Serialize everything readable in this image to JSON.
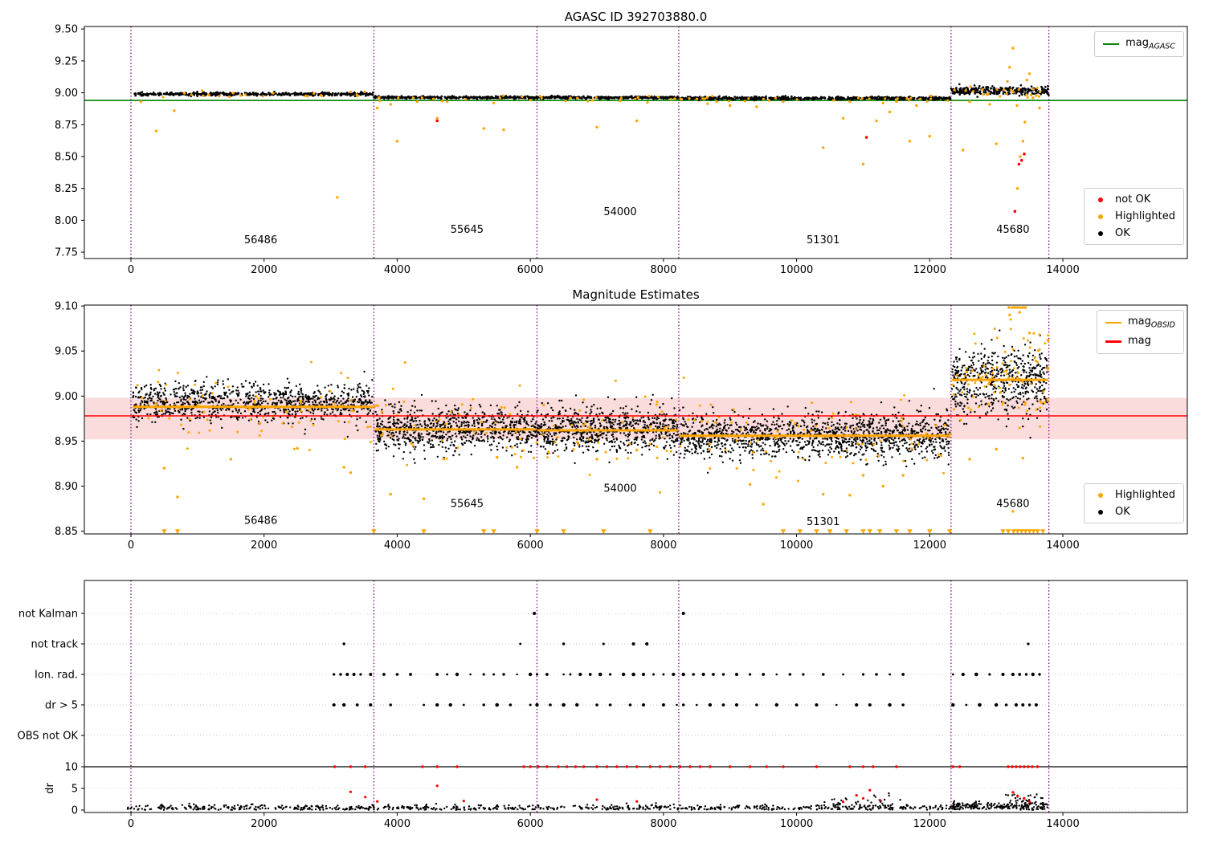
{
  "colors": {
    "ok": "#000000",
    "highlighted": "#FFA500",
    "not_ok": "#FF0000",
    "mag_agasc_line": "#008000",
    "mag_line": "#FF0000",
    "mag_obsid_line": "#FFA500",
    "mag_band": "#fadcdc",
    "obsid_divider": "#800080"
  },
  "chart_data": [
    {
      "type": "scatter",
      "title": "AGASC ID 392703880.0",
      "xlim": [
        -700,
        15870
      ],
      "ylim": [
        7.7,
        9.52
      ],
      "xticks": [
        0,
        2000,
        4000,
        6000,
        8000,
        10000,
        12000,
        14000
      ],
      "yticks": [
        7.75,
        8.0,
        8.25,
        8.5,
        8.75,
        9.0,
        9.25,
        9.5
      ],
      "vlines": [
        0,
        3650,
        6100,
        8230,
        12320,
        13790
      ],
      "hline": {
        "y": 8.94,
        "label": {
          "text": "mag",
          "sub": "AGASC"
        }
      },
      "obsid_labels": [
        {
          "text": "56486",
          "x": 1700,
          "y": 7.82
        },
        {
          "text": "55645",
          "x": 4800,
          "y": 7.9
        },
        {
          "text": "54000",
          "x": 7100,
          "y": 8.04
        },
        {
          "text": "51301",
          "x": 10150,
          "y": 7.82
        },
        {
          "text": "45680",
          "x": 13000,
          "y": 7.9
        }
      ],
      "ok_clusters": [
        {
          "x0": 30,
          "x1": 3650,
          "n": 500,
          "mean": 8.99,
          "sd": 0.006
        },
        {
          "x0": 3650,
          "x1": 8230,
          "n": 650,
          "mean": 8.963,
          "sd": 0.005
        },
        {
          "x0": 8230,
          "x1": 12320,
          "n": 600,
          "mean": 8.957,
          "sd": 0.006
        },
        {
          "x0": 12320,
          "x1": 13790,
          "n": 280,
          "mean": 9.015,
          "sd": 0.016
        }
      ],
      "highlight_clusters": [
        {
          "x0": 30,
          "x1": 3650,
          "n": 22,
          "mean": 8.982,
          "sd": 0.012
        },
        {
          "x0": 3650,
          "x1": 8230,
          "n": 30,
          "mean": 8.955,
          "sd": 0.012
        },
        {
          "x0": 8230,
          "x1": 12320,
          "n": 30,
          "mean": 8.95,
          "sd": 0.012
        },
        {
          "x0": 12320,
          "x1": 13790,
          "n": 25,
          "mean": 9.0,
          "sd": 0.03
        }
      ],
      "highlight_points": [
        [
          150,
          8.93
        ],
        [
          380,
          8.7
        ],
        [
          650,
          8.86
        ],
        [
          3100,
          8.18
        ],
        [
          3700,
          8.88
        ],
        [
          3900,
          8.91
        ],
        [
          4000,
          8.62
        ],
        [
          4300,
          8.93
        ],
        [
          4600,
          8.8
        ],
        [
          4750,
          8.93
        ],
        [
          5300,
          8.72
        ],
        [
          5450,
          8.92
        ],
        [
          5600,
          8.71
        ],
        [
          6600,
          8.96
        ],
        [
          7000,
          8.73
        ],
        [
          7600,
          8.78
        ],
        [
          8800,
          8.93
        ],
        [
          9000,
          8.9
        ],
        [
          9400,
          8.89
        ],
        [
          9800,
          8.93
        ],
        [
          10400,
          8.57
        ],
        [
          10700,
          8.8
        ],
        [
          10800,
          8.93
        ],
        [
          11000,
          8.44
        ],
        [
          11200,
          8.78
        ],
        [
          11300,
          8.92
        ],
        [
          11400,
          8.85
        ],
        [
          11500,
          8.93
        ],
        [
          11700,
          8.62
        ],
        [
          11800,
          8.9
        ],
        [
          12000,
          8.66
        ],
        [
          12500,
          8.55
        ],
        [
          12600,
          8.93
        ],
        [
          12900,
          8.91
        ],
        [
          13000,
          8.6
        ],
        [
          13200,
          9.2
        ],
        [
          13250,
          9.35
        ],
        [
          13310,
          8.9
        ],
        [
          13320,
          8.25
        ],
        [
          13360,
          8.5
        ],
        [
          13400,
          8.62
        ],
        [
          13430,
          8.77
        ],
        [
          13460,
          9.1
        ],
        [
          13500,
          9.15
        ],
        [
          13550,
          8.96
        ],
        [
          13650,
          8.88
        ]
      ],
      "not_ok_points": [
        [
          4600,
          8.78
        ],
        [
          11050,
          8.65
        ],
        [
          13280,
          8.07
        ],
        [
          13340,
          8.44
        ],
        [
          13380,
          8.47
        ],
        [
          13420,
          8.52
        ]
      ],
      "legend": [
        {
          "label": "not OK",
          "color": "#FF0000"
        },
        {
          "label": "Highlighted",
          "color": "#FFA500"
        },
        {
          "label": "OK",
          "color": "#000000"
        }
      ]
    },
    {
      "type": "scatter",
      "title": "Magnitude Estimates",
      "xlim": [
        -700,
        15870
      ],
      "ylim": [
        8.847,
        9.101
      ],
      "xticks": [
        0,
        2000,
        4000,
        6000,
        8000,
        10000,
        12000,
        14000
      ],
      "yticks": [
        8.85,
        8.9,
        8.95,
        9.0,
        9.05,
        9.1
      ],
      "vlines": [
        0,
        3650,
        6100,
        8230,
        12320,
        13790
      ],
      "mag_line": {
        "y": 8.978,
        "label": {
          "text": "mag",
          "sub": ""
        }
      },
      "mag_band": {
        "y0": 8.952,
        "y1": 8.998
      },
      "obsid_mag_label": {
        "text": "mag",
        "sub": "OBSID"
      },
      "obsid_mag_segments": [
        {
          "x0": 30,
          "x1": 3640,
          "y": 8.988
        },
        {
          "x0": 3660,
          "x1": 6090,
          "y": 8.963
        },
        {
          "x0": 6110,
          "x1": 8220,
          "y": 8.962
        },
        {
          "x0": 8240,
          "x1": 12310,
          "y": 8.956
        },
        {
          "x0": 12330,
          "x1": 13780,
          "y": 9.018
        }
      ],
      "obsid_labels": [
        {
          "text": "56486",
          "x": 1700,
          "y": 8.858
        },
        {
          "text": "55645",
          "x": 4800,
          "y": 8.877
        },
        {
          "text": "54000",
          "x": 7100,
          "y": 8.894
        },
        {
          "text": "51301",
          "x": 10150,
          "y": 8.857
        },
        {
          "text": "45680",
          "x": 13000,
          "y": 8.877
        }
      ],
      "ok_clusters": [
        {
          "x0": 30,
          "x1": 3640,
          "n": 1000,
          "mean": 8.992,
          "sd": 0.011
        },
        {
          "x0": 3660,
          "x1": 8220,
          "n": 1500,
          "mean": 8.963,
          "sd": 0.012
        },
        {
          "x0": 8240,
          "x1": 12310,
          "n": 1300,
          "mean": 8.956,
          "sd": 0.012
        },
        {
          "x0": 12330,
          "x1": 13780,
          "n": 550,
          "mean": 9.018,
          "sd": 0.02
        }
      ],
      "highlight_clusters": [
        {
          "x0": 30,
          "x1": 3640,
          "n": 70,
          "mean": 8.99,
          "sd": 0.02
        },
        {
          "x0": 3660,
          "x1": 8220,
          "n": 90,
          "mean": 8.962,
          "sd": 0.022
        },
        {
          "x0": 8240,
          "x1": 12310,
          "n": 85,
          "mean": 8.955,
          "sd": 0.022
        },
        {
          "x0": 12330,
          "x1": 13780,
          "n": 90,
          "mean": 9.02,
          "sd": 0.03
        }
      ],
      "highlight_points": [
        [
          500,
          8.92
        ],
        [
          700,
          8.888
        ],
        [
          1500,
          8.93
        ],
        [
          2500,
          8.942
        ],
        [
          3200,
          8.921
        ],
        [
          3300,
          8.915
        ],
        [
          3900,
          8.891
        ],
        [
          4400,
          8.886
        ],
        [
          4700,
          8.93
        ],
        [
          5500,
          8.932
        ],
        [
          5800,
          8.921
        ],
        [
          6200,
          8.99
        ],
        [
          7000,
          8.93
        ],
        [
          7600,
          8.94
        ],
        [
          9300,
          8.902
        ],
        [
          9500,
          8.88
        ],
        [
          10400,
          8.891
        ],
        [
          10800,
          8.89
        ],
        [
          11000,
          8.912
        ],
        [
          11300,
          8.9
        ],
        [
          11600,
          8.912
        ],
        [
          12600,
          8.93
        ],
        [
          13000,
          8.941
        ],
        [
          13250,
          8.872
        ],
        [
          13400,
          8.931
        ],
        [
          13200,
          9.09
        ],
        [
          13350,
          9.093
        ],
        [
          13500,
          9.07
        ]
      ],
      "clipped_low_x": [
        500,
        700,
        3650,
        4400,
        5300,
        5450,
        6100,
        6500,
        7100,
        7800,
        9800,
        10050,
        10300,
        10500,
        10750,
        11000,
        11100,
        11250,
        11500,
        11700,
        12000,
        12300,
        13100,
        13180,
        13260,
        13320,
        13380,
        13440,
        13500,
        13560,
        13620,
        13700
      ],
      "clipped_high_x": [
        13190,
        13240,
        13280,
        13320,
        13360,
        13400,
        13440
      ],
      "line_legend": [
        {
          "text": "mag",
          "sub": "OBSID",
          "color": "#FFA500"
        },
        {
          "text": "mag",
          "sub": "",
          "color": "#FF0000"
        }
      ],
      "legend": [
        {
          "label": "Highlighted",
          "color": "#FFA500"
        },
        {
          "label": "OK",
          "color": "#000000"
        }
      ]
    },
    {
      "type": "flags",
      "title": "",
      "xlim": [
        -700,
        15870
      ],
      "xticks": [
        0,
        2000,
        4000,
        6000,
        8000,
        10000,
        12000,
        14000
      ],
      "vlines": [
        0,
        3650,
        6100,
        8230,
        12320,
        13790
      ],
      "ylabel": "dr",
      "dr_ticks": [
        10,
        5,
        0
      ],
      "dr_limit_line": 10,
      "flag_rows": [
        {
          "label": "not Kalman",
          "xs": [
            6060,
            8300
          ]
        },
        {
          "label": "not track",
          "xs": [
            3200,
            5850,
            6500,
            7100,
            7550,
            7750,
            13480
          ]
        },
        {
          "label": "Ion. rad.",
          "xs": [
            3050,
            3150,
            3250,
            3350,
            3450,
            3600,
            3800,
            4000,
            4200,
            4600,
            4750,
            4900,
            5100,
            5300,
            5450,
            5600,
            5800,
            6000,
            6100,
            6250,
            6500,
            6600,
            6750,
            6900,
            7050,
            7200,
            7400,
            7550,
            7700,
            7850,
            8000,
            8150,
            8300,
            8450,
            8600,
            8750,
            8900,
            9100,
            9300,
            9500,
            9700,
            9900,
            10100,
            10400,
            10700,
            11000,
            11200,
            11400,
            11600,
            12350,
            12500,
            12700,
            12900,
            13100,
            13250,
            13350,
            13450,
            13550,
            13650
          ]
        },
        {
          "label": "dr > 5",
          "xs": [
            3050,
            3200,
            3400,
            3600,
            3900,
            4400,
            4600,
            4800,
            5000,
            5300,
            5500,
            5700,
            6000,
            6100,
            6300,
            6500,
            6700,
            7000,
            7200,
            7500,
            7700,
            8000,
            8200,
            8300,
            8500,
            8700,
            8900,
            9100,
            9400,
            9700,
            10000,
            10300,
            10600,
            10900,
            11100,
            11400,
            11600,
            12350,
            12550,
            12750,
            13000,
            13150,
            13300,
            13400,
            13500,
            13600
          ]
        },
        {
          "label": "OBS not OK",
          "xs": []
        }
      ],
      "dr_ok_clusters": [
        {
          "x0": -60,
          "x1": 12320,
          "n": 700,
          "mean": 0.5,
          "sd": 0.38
        },
        {
          "x0": 12330,
          "x1": 13780,
          "n": 200,
          "mean": 0.9,
          "sd": 0.5
        },
        {
          "x0": 10400,
          "x1": 11600,
          "n": 40,
          "mean": 1.7,
          "sd": 0.8
        },
        {
          "x0": 13100,
          "x1": 13700,
          "n": 30,
          "mean": 2.4,
          "sd": 0.9
        }
      ],
      "dr_not_ok_points": [
        [
          3300,
          4.2
        ],
        [
          3520,
          3.0
        ],
        [
          3700,
          2.0
        ],
        [
          4600,
          5.6
        ],
        [
          5000,
          2.1
        ],
        [
          7000,
          2.4
        ],
        [
          7600,
          2.0
        ],
        [
          10700,
          1.9
        ],
        [
          10900,
          3.4
        ],
        [
          11000,
          2.7
        ],
        [
          11100,
          4.6
        ],
        [
          11250,
          2.3
        ],
        [
          13250,
          4.1
        ],
        [
          13320,
          3.3
        ],
        [
          13420,
          2.7
        ],
        [
          13500,
          1.9
        ]
      ],
      "dr_clipped_x": [
        3060,
        3300,
        3520,
        4380,
        4600,
        4900,
        5900,
        6000,
        6120,
        6250,
        6420,
        6550,
        6680,
        6800,
        7000,
        7150,
        7300,
        7450,
        7600,
        7800,
        7950,
        8100,
        8250,
        8400,
        8550,
        8700,
        9000,
        9300,
        9550,
        9800,
        10300,
        10800,
        11000,
        11150,
        11500,
        12350,
        12450,
        13180,
        13240,
        13300,
        13360,
        13420,
        13480,
        13540,
        13620
      ]
    }
  ]
}
